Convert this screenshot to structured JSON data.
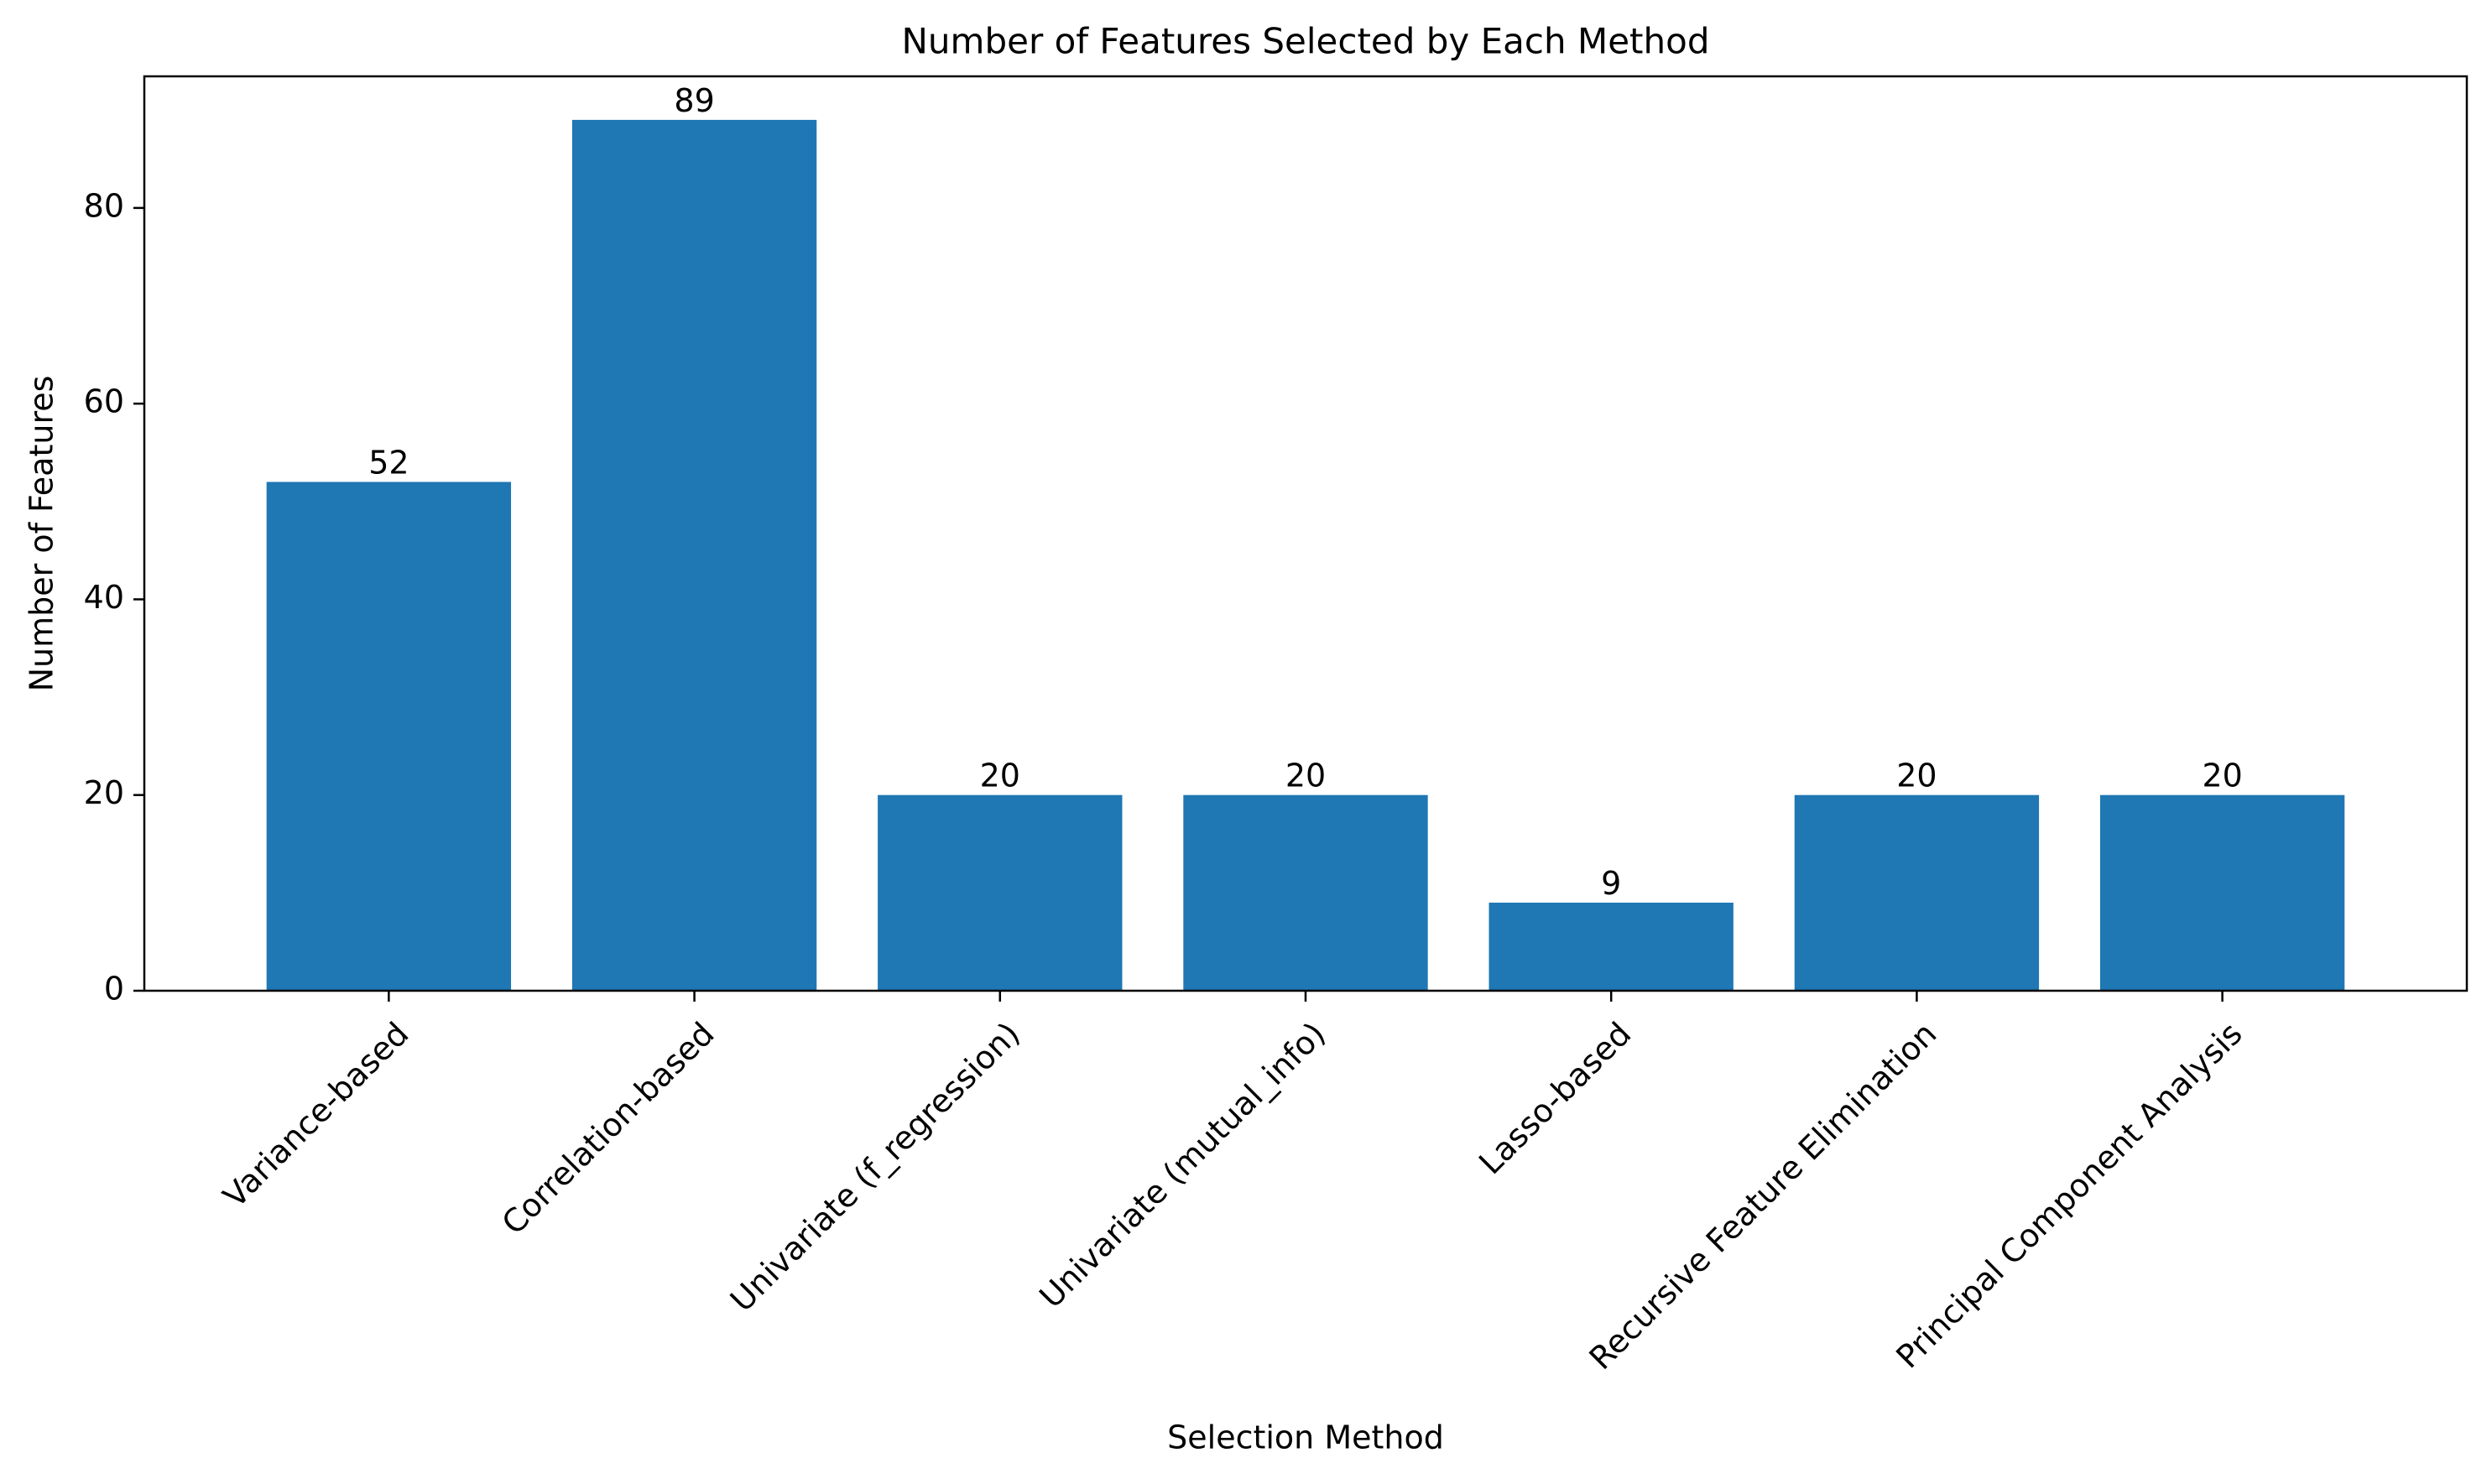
{
  "chart_data": {
    "type": "bar",
    "title": "Number of Features Selected by Each Method",
    "xlabel": "Selection Method",
    "ylabel": "Number of Features",
    "categories": [
      "Variance-based",
      "Correlation-based",
      "Univariate (f_regression)",
      "Univariate (mutual_info)",
      "Lasso-based",
      "Recursive Feature Elimination",
      "Principal Component Analysis"
    ],
    "values": [
      52,
      89,
      20,
      20,
      9,
      20,
      20
    ],
    "data_labels": [
      "52",
      "89",
      "20",
      "20",
      "9",
      "20",
      "20"
    ],
    "ylim": [
      0,
      93.45
    ],
    "yticks": [
      0,
      20,
      40,
      60,
      80
    ],
    "ytick_labels": [
      "0",
      "20",
      "40",
      "60",
      "80"
    ],
    "bar_color": "#1f77b4",
    "grid": false,
    "legend": "none"
  }
}
